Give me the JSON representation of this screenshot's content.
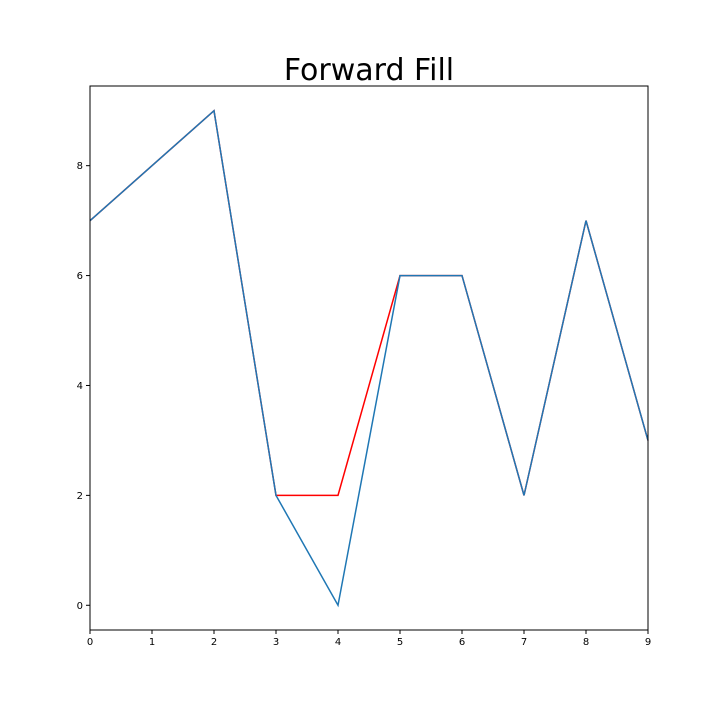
{
  "chart_data": {
    "type": "line",
    "title": "Forward Fill",
    "xlabel": "",
    "ylabel": "",
    "xlim": [
      0,
      9
    ],
    "ylim": [
      -0.45,
      9.45
    ],
    "x_ticks": [
      0,
      1,
      2,
      3,
      4,
      5,
      6,
      7,
      8,
      9
    ],
    "y_ticks": [
      0,
      2,
      4,
      6,
      8
    ],
    "grid": false,
    "x": [
      0,
      1,
      2,
      3,
      4,
      5,
      6,
      7,
      8,
      9
    ],
    "series": [
      {
        "values": [
          7,
          8,
          9,
          2,
          2,
          6,
          6,
          2,
          7,
          3
        ],
        "color": "#ff0000"
      },
      {
        "values": [
          7,
          8,
          9,
          2,
          0,
          6,
          6,
          2,
          7,
          3
        ],
        "color": "#1f77b4"
      }
    ]
  }
}
